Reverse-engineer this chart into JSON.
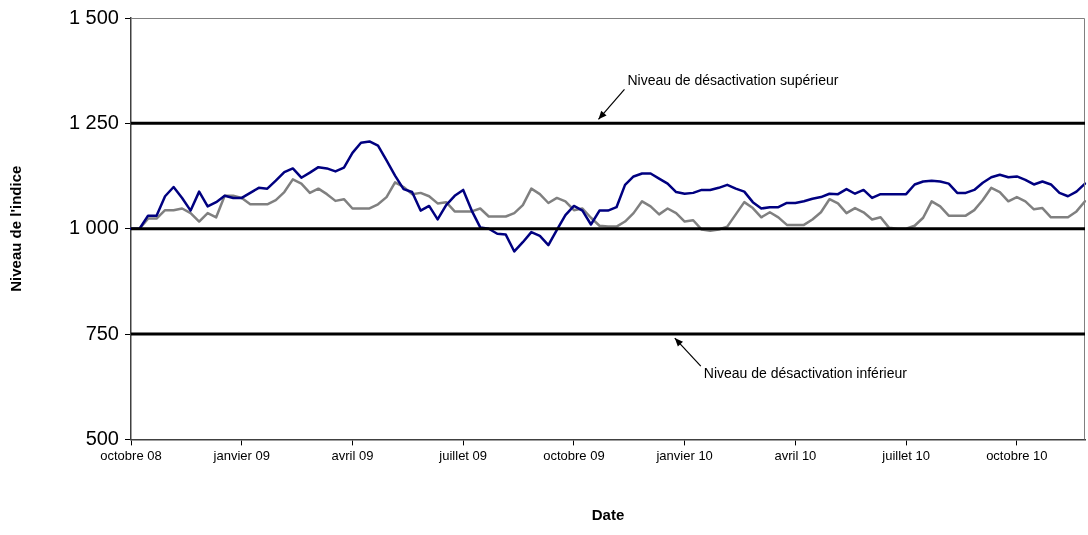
{
  "chart_data": {
    "type": "line",
    "xlabel": "Date",
    "ylabel": "Niveau de l'indice",
    "categories": [
      "octobre 08",
      null,
      null,
      null,
      null,
      null,
      null,
      null,
      null,
      null,
      null,
      null,
      null,
      "janvier 09",
      null,
      null,
      null,
      null,
      null,
      null,
      null,
      null,
      null,
      null,
      null,
      null,
      "avril 09",
      null,
      null,
      null,
      null,
      null,
      null,
      null,
      null,
      null,
      null,
      null,
      null,
      "juillet 09",
      null,
      null,
      null,
      null,
      null,
      null,
      null,
      null,
      null,
      null,
      null,
      null,
      "octobre 09",
      null,
      null,
      null,
      null,
      null,
      null,
      null,
      null,
      null,
      null,
      null,
      null,
      "janvier 10",
      null,
      null,
      null,
      null,
      null,
      null,
      null,
      null,
      null,
      null,
      null,
      null,
      "avril 10",
      null,
      null,
      null,
      null,
      null,
      null,
      null,
      null,
      null,
      null,
      null,
      null,
      "juillet 10",
      null,
      null,
      null,
      null,
      null,
      null,
      null,
      null,
      null,
      null,
      null,
      null,
      "octobre 10",
      null,
      null,
      null,
      null,
      null,
      null,
      null,
      null
    ],
    "series": [
      {
        "color": "#000080",
        "values": [
          1000,
          1000,
          1031,
          1031,
          1077,
          1099,
          1073,
          1043,
          1088,
          1053,
          1063,
          1078,
          1073,
          1073,
          1085,
          1097,
          1095,
          1114,
          1134,
          1143,
          1121,
          1133,
          1146,
          1143,
          1136,
          1145,
          1180,
          1204,
          1207,
          1197,
          1162,
          1126,
          1094,
          1087,
          1043,
          1054,
          1022,
          1056,
          1078,
          1092,
          1043,
          1003,
          1000,
          988,
          986,
          946,
          968,
          992,
          983,
          961,
          997,
          1032,
          1054,
          1043,
          1010,
          1043,
          1043,
          1051,
          1104,
          1124,
          1131,
          1131,
          1119,
          1107,
          1087,
          1083,
          1085,
          1092,
          1092,
          1097,
          1104,
          1095,
          1088,
          1063,
          1048,
          1051,
          1051,
          1061,
          1061,
          1065,
          1071,
          1075,
          1083,
          1082,
          1094,
          1083,
          1092,
          1073,
          1082,
          1082,
          1082,
          1082,
          1105,
          1112,
          1114,
          1112,
          1107,
          1085,
          1085,
          1092,
          1109,
          1122,
          1128,
          1122,
          1124,
          1116,
          1105,
          1112,
          1105,
          1085,
          1077,
          1088,
          1107
        ]
      },
      {
        "color": "#808080",
        "values": [
          1000,
          1000,
          1024,
          1024,
          1044,
          1044,
          1048,
          1037,
          1017,
          1037,
          1027,
          1078,
          1078,
          1073,
          1058,
          1058,
          1058,
          1068,
          1087,
          1117,
          1107,
          1085,
          1095,
          1082,
          1066,
          1070,
          1048,
          1048,
          1048,
          1058,
          1075,
          1110,
          1099,
          1082,
          1085,
          1077,
          1060,
          1063,
          1041,
          1041,
          1041,
          1048,
          1029,
          1029,
          1029,
          1037,
          1056,
          1095,
          1082,
          1061,
          1073,
          1065,
          1044,
          1048,
          1026,
          1007,
          1005,
          1005,
          1017,
          1037,
          1065,
          1053,
          1034,
          1048,
          1037,
          1017,
          1020,
          998,
          995,
          998,
          1005,
          1034,
          1063,
          1049,
          1027,
          1039,
          1027,
          1009,
          1009,
          1009,
          1022,
          1039,
          1070,
          1060,
          1037,
          1049,
          1039,
          1022,
          1027,
          1002,
          1000,
          1000,
          1007,
          1026,
          1065,
          1053,
          1031,
          1031,
          1031,
          1044,
          1068,
          1097,
          1087,
          1065,
          1075,
          1065,
          1046,
          1049,
          1027,
          1027,
          1027,
          1041,
          1065
        ]
      }
    ],
    "ylim": [
      500,
      1500
    ],
    "yticks": [
      {
        "value": 500,
        "label": "500"
      },
      {
        "value": 750,
        "label": "750"
      },
      {
        "value": 1000,
        "label": "1 000"
      },
      {
        "value": 1250,
        "label": "1 250"
      },
      {
        "value": 1500,
        "label": "1 500"
      }
    ],
    "ref_lines": [
      {
        "axis": "y",
        "value": 1250,
        "label": "Niveau de désactivation supérieur",
        "color": "#000000"
      },
      {
        "axis": "y",
        "value": 1000,
        "label": null,
        "color": "#000000"
      },
      {
        "axis": "y",
        "value": 750,
        "label": "Niveau de désactivation inférieur",
        "color": "#000000"
      }
    ],
    "grid": false,
    "legend": false,
    "marker": "none",
    "line_style": "solid"
  }
}
